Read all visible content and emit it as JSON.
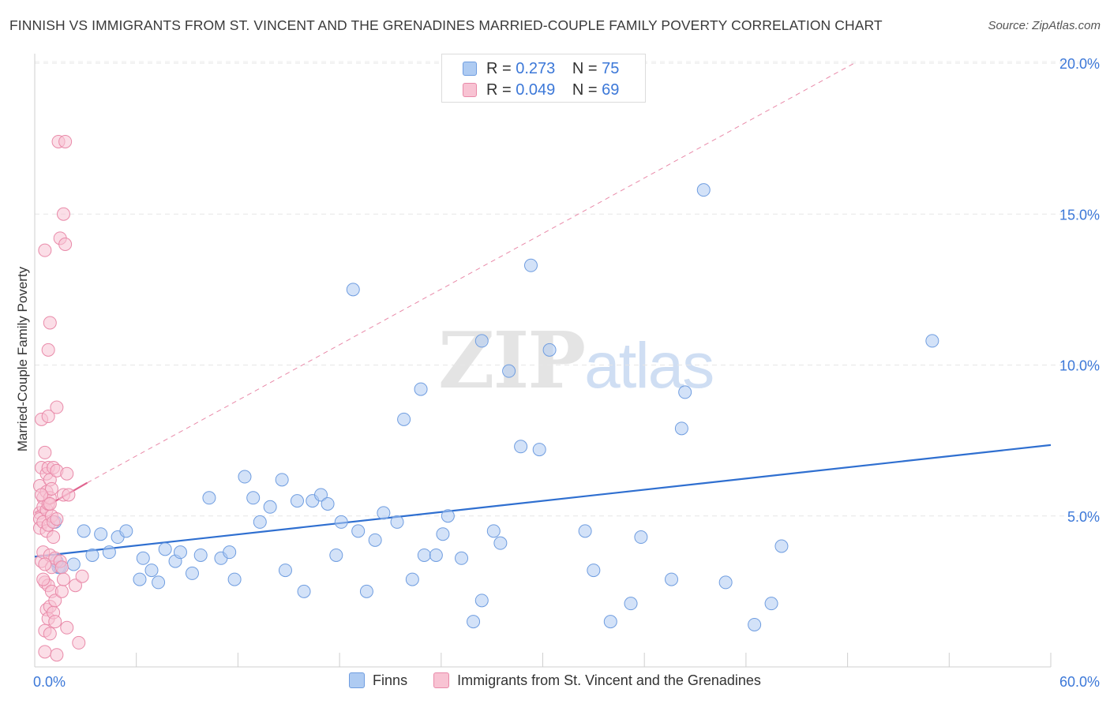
{
  "title": "FINNISH VS IMMIGRANTS FROM ST. VINCENT AND THE GRENADINES MARRIED-COUPLE FAMILY POVERTY CORRELATION CHART",
  "source": "Source: ZipAtlas.com",
  "watermark": {
    "zip": "ZIP",
    "atlas": "atlas"
  },
  "legend": {
    "rows": [
      {
        "r_label": "R =",
        "r_value": "0.273",
        "n_label": "N =",
        "n_value": "75",
        "color": "#aecbf2",
        "border": "#6f9de0"
      },
      {
        "r_label": "R =",
        "r_value": "0.049",
        "n_label": "N =",
        "n_value": "69",
        "color": "#f8c3d3",
        "border": "#e98aa9"
      }
    ]
  },
  "bottom_legend": {
    "finns": "Finns",
    "immigrants": "Immigrants from St. Vincent and the Grenadines"
  },
  "chart_data": {
    "type": "scatter",
    "title": "FINNISH VS IMMIGRANTS FROM ST. VINCENT AND THE GRENADINES MARRIED-COUPLE FAMILY POVERTY CORRELATION CHART",
    "xlabel": "",
    "ylabel": "Married-Couple Family Poverty",
    "xlim": [
      0,
      60
    ],
    "ylim": [
      0,
      20
    ],
    "x_tick_labels": [
      "0.0%",
      "60.0%"
    ],
    "y_tick_labels": [
      "5.0%",
      "10.0%",
      "15.0%",
      "20.0%"
    ],
    "y_ticks": [
      5,
      10,
      15,
      20
    ],
    "grid": true,
    "legend_position": "top-center",
    "series": [
      {
        "name": "Finns",
        "color": "#aecbf2",
        "stroke": "#6f9de0",
        "trend": {
          "x": [
            0,
            60
          ],
          "y": [
            3.65,
            7.35
          ],
          "color": "#2f6fd0"
        },
        "points": [
          [
            1.2,
            4.8
          ],
          [
            1.4,
            3.3
          ],
          [
            1.5,
            3.3
          ],
          [
            2.3,
            3.4
          ],
          [
            2.9,
            4.5
          ],
          [
            3.4,
            3.7
          ],
          [
            3.9,
            4.4
          ],
          [
            4.4,
            3.8
          ],
          [
            4.9,
            4.3
          ],
          [
            5.4,
            4.5
          ],
          [
            6.2,
            2.9
          ],
          [
            6.4,
            3.6
          ],
          [
            6.9,
            3.2
          ],
          [
            7.3,
            2.8
          ],
          [
            7.7,
            3.9
          ],
          [
            8.3,
            3.5
          ],
          [
            8.6,
            3.8
          ],
          [
            9.3,
            3.1
          ],
          [
            9.8,
            3.7
          ],
          [
            10.3,
            5.6
          ],
          [
            11.0,
            3.6
          ],
          [
            11.5,
            3.8
          ],
          [
            11.8,
            2.9
          ],
          [
            12.4,
            6.3
          ],
          [
            12.9,
            5.6
          ],
          [
            13.3,
            4.8
          ],
          [
            13.9,
            5.3
          ],
          [
            14.6,
            6.2
          ],
          [
            14.8,
            3.2
          ],
          [
            15.5,
            5.5
          ],
          [
            15.9,
            2.5
          ],
          [
            16.4,
            5.5
          ],
          [
            16.9,
            5.7
          ],
          [
            17.3,
            5.4
          ],
          [
            17.8,
            3.7
          ],
          [
            18.1,
            4.8
          ],
          [
            18.8,
            12.5
          ],
          [
            19.1,
            4.5
          ],
          [
            19.6,
            2.5
          ],
          [
            20.1,
            4.2
          ],
          [
            20.6,
            5.1
          ],
          [
            21.4,
            4.8
          ],
          [
            21.8,
            8.2
          ],
          [
            22.3,
            2.9
          ],
          [
            22.8,
            9.2
          ],
          [
            23.0,
            3.7
          ],
          [
            23.7,
            3.7
          ],
          [
            24.1,
            4.4
          ],
          [
            24.4,
            5.0
          ],
          [
            25.2,
            3.6
          ],
          [
            25.9,
            1.5
          ],
          [
            26.4,
            2.2
          ],
          [
            26.4,
            10.8
          ],
          [
            27.1,
            4.5
          ],
          [
            27.5,
            4.1
          ],
          [
            28.0,
            9.8
          ],
          [
            28.7,
            7.3
          ],
          [
            29.3,
            13.3
          ],
          [
            29.8,
            7.2
          ],
          [
            30.4,
            10.5
          ],
          [
            32.5,
            4.5
          ],
          [
            33.0,
            3.2
          ],
          [
            34.0,
            1.5
          ],
          [
            35.2,
            2.1
          ],
          [
            35.8,
            4.3
          ],
          [
            37.6,
            2.9
          ],
          [
            38.2,
            7.9
          ],
          [
            38.4,
            9.1
          ],
          [
            39.5,
            15.8
          ],
          [
            40.8,
            2.8
          ],
          [
            42.5,
            1.4
          ],
          [
            43.5,
            2.1
          ],
          [
            44.1,
            4.0
          ],
          [
            53.0,
            10.8
          ],
          [
            1.3,
            3.5
          ]
        ]
      },
      {
        "name": "Immigrants from St. Vincent and the Grenadines",
        "color": "#f8c3d3",
        "stroke": "#e98aa9",
        "trend": {
          "x": [
            0,
            3.1
          ],
          "y": [
            5.1,
            6.1
          ],
          "color": "#e0648f"
        },
        "trend_extension": {
          "x": [
            3.1,
            48.4
          ],
          "y": [
            6.1,
            20.0
          ],
          "color": "#e98aa9"
        },
        "points": [
          [
            0.3,
            6.0
          ],
          [
            0.3,
            5.1
          ],
          [
            0.3,
            4.9
          ],
          [
            0.3,
            4.6
          ],
          [
            0.4,
            3.5
          ],
          [
            0.4,
            6.6
          ],
          [
            0.4,
            8.2
          ],
          [
            0.5,
            5.6
          ],
          [
            0.5,
            5.3
          ],
          [
            0.5,
            4.8
          ],
          [
            0.5,
            3.8
          ],
          [
            0.6,
            13.8
          ],
          [
            0.6,
            2.8
          ],
          [
            0.6,
            1.2
          ],
          [
            0.6,
            0.5
          ],
          [
            0.6,
            7.1
          ],
          [
            0.7,
            6.4
          ],
          [
            0.7,
            5.8
          ],
          [
            0.7,
            5.2
          ],
          [
            0.7,
            4.5
          ],
          [
            0.7,
            1.9
          ],
          [
            0.8,
            8.3
          ],
          [
            0.8,
            6.6
          ],
          [
            0.8,
            5.4
          ],
          [
            0.8,
            4.7
          ],
          [
            0.8,
            2.7
          ],
          [
            0.8,
            1.6
          ],
          [
            0.8,
            10.5
          ],
          [
            0.9,
            11.4
          ],
          [
            0.9,
            6.2
          ],
          [
            0.9,
            5.6
          ],
          [
            0.9,
            3.7
          ],
          [
            0.9,
            2.0
          ],
          [
            0.9,
            1.1
          ],
          [
            1.0,
            5.9
          ],
          [
            1.0,
            5.0
          ],
          [
            1.0,
            3.3
          ],
          [
            1.0,
            2.5
          ],
          [
            1.1,
            6.6
          ],
          [
            1.1,
            4.8
          ],
          [
            1.1,
            4.3
          ],
          [
            1.1,
            1.8
          ],
          [
            1.2,
            2.2
          ],
          [
            1.2,
            3.6
          ],
          [
            1.2,
            1.5
          ],
          [
            1.3,
            8.6
          ],
          [
            1.3,
            4.9
          ],
          [
            1.3,
            0.4
          ],
          [
            1.3,
            6.5
          ],
          [
            1.4,
            17.4
          ],
          [
            1.5,
            14.2
          ],
          [
            1.5,
            3.5
          ],
          [
            1.6,
            2.5
          ],
          [
            1.6,
            3.3
          ],
          [
            1.7,
            2.9
          ],
          [
            1.7,
            15.0
          ],
          [
            1.7,
            5.7
          ],
          [
            1.8,
            17.4
          ],
          [
            1.8,
            14.0
          ],
          [
            1.9,
            1.3
          ],
          [
            1.9,
            6.4
          ],
          [
            2.0,
            5.7
          ],
          [
            2.4,
            2.7
          ],
          [
            2.6,
            0.8
          ],
          [
            2.8,
            3.0
          ],
          [
            0.5,
            2.9
          ],
          [
            0.6,
            3.4
          ],
          [
            0.4,
            5.7
          ],
          [
            0.9,
            5.4
          ]
        ]
      }
    ]
  }
}
